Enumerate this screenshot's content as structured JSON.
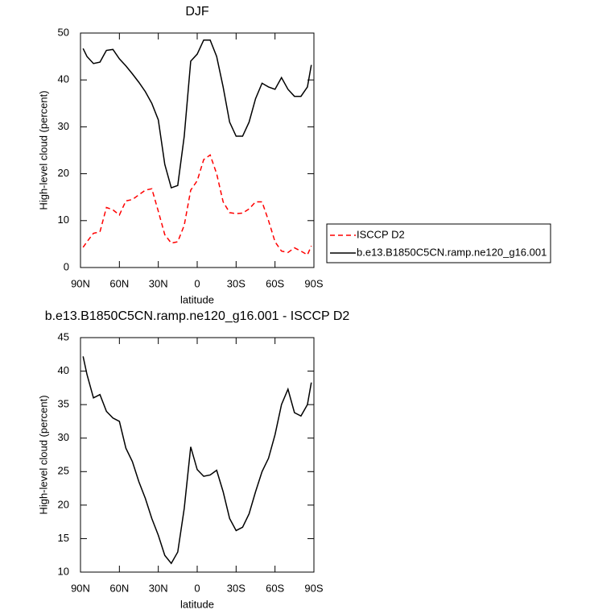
{
  "chart_data": [
    {
      "type": "line",
      "title": "DJF",
      "x_label": "latitude",
      "y_label": "High-level cloud (percent)",
      "x": [
        88,
        85,
        80,
        75,
        70,
        65,
        60,
        55,
        50,
        45,
        40,
        35,
        30,
        25,
        20,
        15,
        10,
        5,
        0,
        -5,
        -10,
        -15,
        -20,
        -25,
        -30,
        -35,
        -40,
        -45,
        -50,
        -55,
        -60,
        -65,
        -70,
        -75,
        -80,
        -85,
        -88
      ],
      "series": [
        {
          "name": "ISCCP D2",
          "color": "#ff0000",
          "line_style": "dashed",
          "values": [
            4.3,
            5.5,
            7.3,
            7.6,
            12.8,
            12.3,
            11.2,
            14.2,
            14.5,
            15.5,
            16.5,
            16.8,
            12,
            7,
            5.2,
            5.5,
            9,
            16.5,
            18.5,
            23,
            24,
            20,
            14,
            11.7,
            11.5,
            11.6,
            12.5,
            14,
            14,
            10,
            5.5,
            3.5,
            3.2,
            4.2,
            3.5,
            2.7,
            4.6
          ]
        },
        {
          "name": "b.e13.B1850C5CN.ramp.ne120_g16.001",
          "color": "#000000",
          "line_style": "solid",
          "values": [
            46.7,
            45,
            43.5,
            43.8,
            46.3,
            46.5,
            44.5,
            43,
            41.3,
            39.5,
            37.5,
            35,
            31.5,
            22,
            17,
            17.5,
            28,
            44,
            45.5,
            48.5,
            48.5,
            45,
            38.5,
            31,
            28,
            28,
            31,
            36,
            39.3,
            38.5,
            38,
            40.5,
            38,
            36.5,
            36.5,
            38.5,
            43.2
          ]
        }
      ],
      "xlim": [
        90,
        -90
      ],
      "xticks": [
        {
          "value": 90,
          "label": "90N"
        },
        {
          "value": 60,
          "label": "60N"
        },
        {
          "value": 30,
          "label": "30N"
        },
        0,
        {
          "value": -30,
          "label": "30S"
        },
        {
          "value": -60,
          "label": "60S"
        },
        {
          "value": -90,
          "label": "90S"
        }
      ],
      "ylim": [
        0,
        50
      ],
      "yticks": [
        0,
        10,
        20,
        30,
        40,
        50
      ],
      "legend": "right"
    },
    {
      "type": "line",
      "title": "b.e13.B1850C5CN.ramp.ne120_g16.001 - ISCCP D2",
      "x_label": "latitude",
      "y_label": "High-level cloud (percent)",
      "x": [
        88,
        85,
        80,
        75,
        70,
        65,
        60,
        55,
        50,
        45,
        40,
        35,
        30,
        25,
        20,
        15,
        10,
        5,
        0,
        -5,
        -10,
        -15,
        -20,
        -25,
        -30,
        -35,
        -40,
        -45,
        -50,
        -55,
        -60,
        -65,
        -70,
        -75,
        -80,
        -85,
        -88
      ],
      "series": [
        {
          "color": "#000000",
          "line_style": "solid",
          "values": [
            42.2,
            39.5,
            36,
            36.5,
            34,
            33,
            32.5,
            28.5,
            26.5,
            23.5,
            21,
            18,
            15.5,
            12.5,
            11.3,
            13,
            19.5,
            28.7,
            25.3,
            24.3,
            24.5,
            25.2,
            22,
            18,
            16.2,
            16.7,
            18.7,
            22,
            25,
            27,
            30.5,
            35,
            37.3,
            33.8,
            33.3,
            35,
            38.3
          ]
        }
      ],
      "xlim": [
        90,
        -90
      ],
      "xticks": [
        {
          "value": 90,
          "label": "90N"
        },
        {
          "value": 60,
          "label": "60N"
        },
        {
          "value": 30,
          "label": "30N"
        },
        0,
        {
          "value": -30,
          "label": "30S"
        },
        {
          "value": -60,
          "label": "60S"
        },
        {
          "value": -90,
          "label": "90S"
        }
      ],
      "ylim": [
        10,
        45
      ],
      "yticks": [
        10,
        15,
        20,
        25,
        30,
        35,
        40,
        45
      ]
    }
  ]
}
